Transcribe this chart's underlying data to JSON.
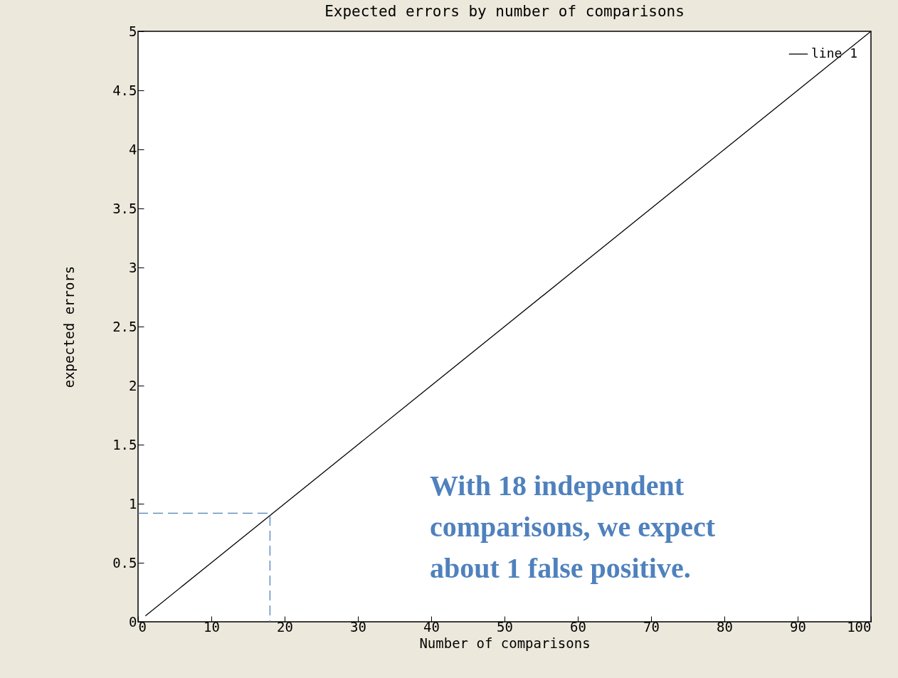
{
  "chart_data": {
    "type": "line",
    "title": "Expected errors by number of comparisons",
    "xlabel": "Number of comparisons",
    "ylabel": "expected errors",
    "xlim": [
      0,
      100
    ],
    "ylim": [
      0,
      5
    ],
    "xticks": [
      0,
      10,
      20,
      30,
      40,
      50,
      60,
      70,
      80,
      90,
      100
    ],
    "yticks": [
      0,
      0.5,
      1,
      1.5,
      2,
      2.5,
      3,
      3.5,
      4,
      4.5,
      5
    ],
    "grid": false,
    "legend": "top right",
    "marker": "none",
    "series": [
      {
        "name": "line 1",
        "color": "#000000",
        "x": [
          1,
          10,
          20,
          30,
          40,
          50,
          60,
          70,
          80,
          90,
          100
        ],
        "values": [
          0.05,
          0.5,
          1,
          1.5,
          2,
          2.5,
          3,
          3.5,
          4,
          4.5,
          5
        ]
      },
      {
        "type": "line",
        "line_style": "dashed",
        "color": "#4f81bd",
        "x": [
          0,
          18,
          18
        ],
        "values": [
          0.92,
          0.92,
          0
        ]
      }
    ],
    "annotations": [
      "With 18 independent comparisons, we expect about 1 false positive."
    ]
  }
}
